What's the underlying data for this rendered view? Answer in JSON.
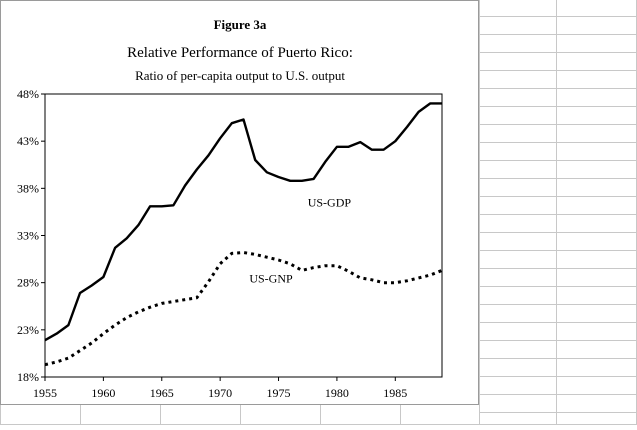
{
  "chart_data": {
    "type": "line",
    "figure_label": "Figure 3a",
    "title": "Relative Performance of Puerto Rico:",
    "subtitle": "Ratio of per-capita output to U.S. output",
    "xlabel": "",
    "ylabel": "",
    "xlim": [
      1955,
      1989
    ],
    "ylim": [
      18,
      48
    ],
    "x_ticks": [
      1955,
      1960,
      1965,
      1970,
      1975,
      1980,
      1985
    ],
    "x_tick_labels": [
      "1955",
      "1960",
      "1965",
      "1970",
      "1975",
      "1980",
      "1985"
    ],
    "y_ticks": [
      18,
      23,
      28,
      33,
      38,
      43,
      48
    ],
    "y_tick_labels": [
      "18%",
      "23%",
      "28%",
      "33%",
      "38%",
      "43%",
      "48%"
    ],
    "grid": false,
    "legend": "none (inline labels)",
    "x": [
      1955,
      1956,
      1957,
      1958,
      1959,
      1960,
      1961,
      1962,
      1963,
      1964,
      1965,
      1966,
      1967,
      1968,
      1969,
      1970,
      1971,
      1972,
      1973,
      1974,
      1975,
      1976,
      1977,
      1978,
      1979,
      1980,
      1981,
      1982,
      1983,
      1984,
      1985,
      1986,
      1987,
      1988,
      1989
    ],
    "series": [
      {
        "name": "US-GDP",
        "style": "solid",
        "color": "#000000",
        "label_at": [
          1977.5,
          36.1
        ],
        "values": [
          21.9,
          22.6,
          23.5,
          26.9,
          27.7,
          28.6,
          31.7,
          32.7,
          34.1,
          36.1,
          36.1,
          36.2,
          38.3,
          40.0,
          41.5,
          43.3,
          44.9,
          45.3,
          41.0,
          39.7,
          39.2,
          38.8,
          38.8,
          39.0,
          40.8,
          42.4,
          42.4,
          42.9,
          42.1,
          42.1,
          43.0,
          44.5,
          46.1,
          47.0,
          47.0
        ]
      },
      {
        "name": "US-GNP",
        "style": "dotted",
        "color": "#000000",
        "label_at": [
          1972.5,
          28.0
        ],
        "values": [
          19.3,
          19.6,
          20.0,
          20.8,
          21.6,
          22.6,
          23.5,
          24.3,
          24.9,
          25.4,
          25.8,
          26.0,
          26.2,
          26.4,
          28.1,
          30.0,
          31.1,
          31.2,
          31.0,
          30.7,
          30.4,
          30.0,
          29.3,
          29.6,
          29.8,
          29.8,
          29.2,
          28.5,
          28.3,
          28.0,
          28.0,
          28.2,
          28.5,
          28.8,
          29.3
        ]
      }
    ]
  }
}
